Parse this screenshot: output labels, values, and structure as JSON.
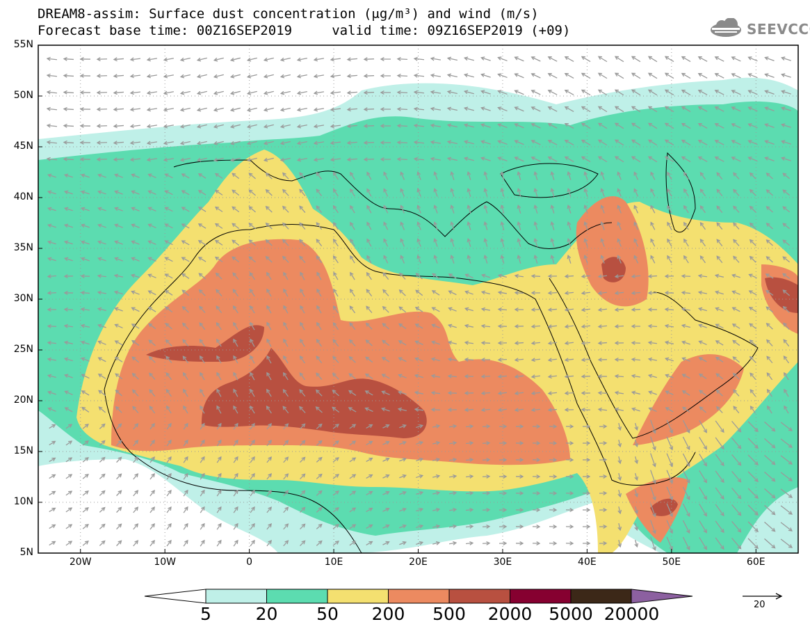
{
  "title_line1": "DREAM8-assim: Surface dust concentration (μg/m³) and wind (m/s)",
  "title_line2": "Forecast base time: 00Z16SEP2019     valid time: 09Z16SEP2019 (+09)",
  "logo": {
    "text": "SEEVCCC",
    "icon": "cloud-icon",
    "color": "#8a8a8a"
  },
  "map": {
    "lon_range": [
      -25,
      65
    ],
    "lat_range": [
      5,
      55
    ],
    "lat_labels": [
      "55N",
      "50N",
      "45N",
      "40N",
      "35N",
      "30N",
      "25N",
      "20N",
      "15N",
      "10N",
      "5N"
    ],
    "lon_labels": [
      "20W",
      "10W",
      "0",
      "10E",
      "20E",
      "30E",
      "40E",
      "50E",
      "60E"
    ],
    "grid": "dotted"
  },
  "colorbar": {
    "labels": [
      "5",
      "20",
      "50",
      "200",
      "500",
      "2000",
      "5000",
      "20000"
    ],
    "colors": [
      "#bff0e8",
      "#5cdcb0",
      "#f4e070",
      "#ec8a60",
      "#b85040",
      "#860030",
      "#3c2818",
      "#8c60a0"
    ],
    "extend": "both"
  },
  "wind_reference": {
    "label": "20",
    "arrow": "right-arrow-icon"
  }
}
